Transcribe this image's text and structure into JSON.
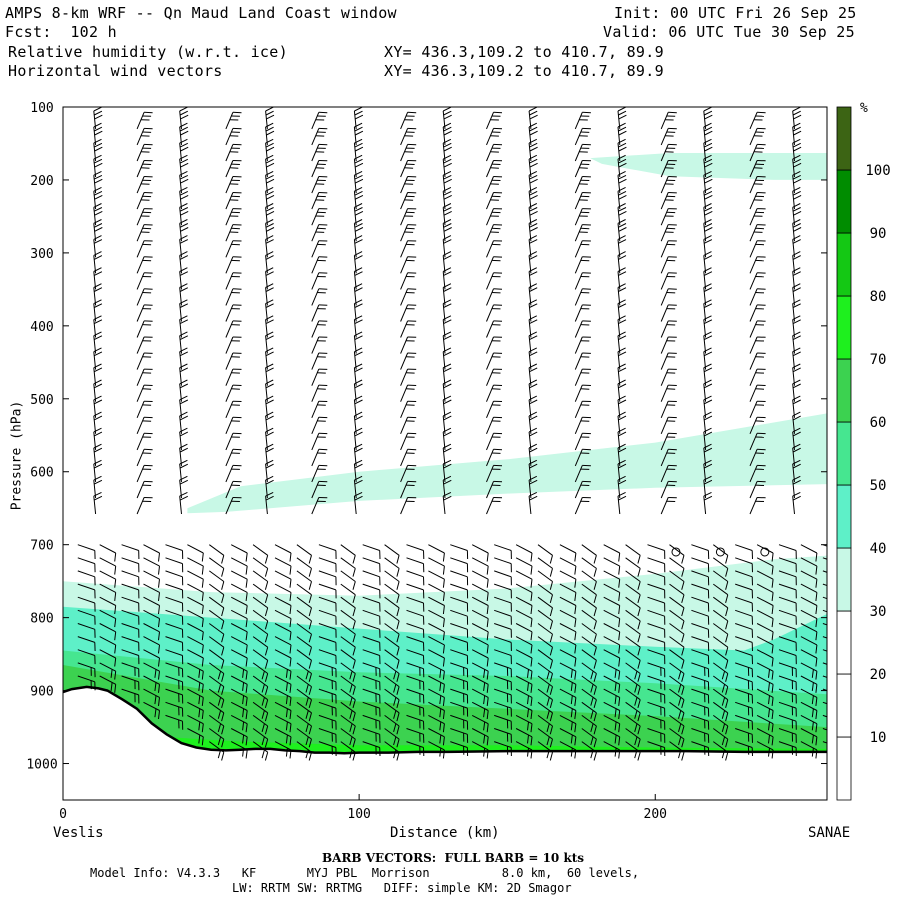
{
  "header": {
    "title": "AMPS 8-km WRF -- Qn Maud Land Coast window",
    "forecast": "Fcst:  102 h",
    "field1": "Relative humidity (w.r.t. ice)",
    "field2": "Horizontal wind vectors",
    "init": "Init: 00 UTC Fri 26 Sep 25",
    "valid": "Valid: 06 UTC Tue 30 Sep 25",
    "xy1": "XY= 436.3,109.2 to 410.7, 89.9",
    "xy2": "XY= 436.3,109.2 to 410.7, 89.9"
  },
  "footer": {
    "barb_note": "BARB VECTORS:  FULL BARB = 10 kts",
    "model_line1": "Model Info: V4.3.3   KF       MYJ PBL  Morrison          8.0 km,  60 levels,",
    "model_line2": "LW: RRTM SW: RRTMG   DIFF: simple KM: 2D Smagor"
  },
  "colors": {
    "rh_10_20": "#ffffff",
    "rh_20_30": "#ffffff",
    "rh_30_40": "#c8f8e6",
    "rh_40_50": "#5ef0c8",
    "rh_50_60": "#46e690",
    "rh_60_70": "#3cd250",
    "rh_70_80": "#1ef01e",
    "rh_80_90": "#14c814",
    "rh_90_100": "#008c00",
    "rh_100_plus": "#3c6414",
    "terrain": "#000000",
    "barb": "#000000"
  },
  "chart_data": {
    "type": "heatmap",
    "title": "Relative humidity (w.r.t. ice) and horizontal wind vectors cross-section",
    "xlabel": "Distance (km)",
    "ylabel": "Pressure (hPa)",
    "xlim": [
      0,
      258
    ],
    "ylim": [
      1050,
      100
    ],
    "x_ticks": [
      0,
      100,
      200
    ],
    "y_ticks": [
      100,
      200,
      300,
      400,
      500,
      600,
      700,
      800,
      900,
      1000
    ],
    "x_endpoints": {
      "left": "Veslis",
      "right": "SANAE"
    },
    "colorbar": {
      "unit": "%",
      "tick_labels": [
        10,
        20,
        30,
        40,
        50,
        60,
        70,
        80,
        90,
        100
      ],
      "bands": [
        {
          "from": 0,
          "to": 10,
          "color_key": "rh_10_20"
        },
        {
          "from": 10,
          "to": 20,
          "color_key": "rh_10_20"
        },
        {
          "from": 20,
          "to": 30,
          "color_key": "rh_20_30"
        },
        {
          "from": 30,
          "to": 40,
          "color_key": "rh_30_40"
        },
        {
          "from": 40,
          "to": 50,
          "color_key": "rh_40_50"
        },
        {
          "from": 50,
          "to": 60,
          "color_key": "rh_50_60"
        },
        {
          "from": 60,
          "to": 70,
          "color_key": "rh_60_70"
        },
        {
          "from": 70,
          "to": 80,
          "color_key": "rh_70_80"
        },
        {
          "from": 80,
          "to": 90,
          "color_key": "rh_80_90"
        },
        {
          "from": 90,
          "to": 100,
          "color_key": "rh_90_100"
        },
        {
          "from": 100,
          "to": 110,
          "color_key": "rh_100_plus"
        }
      ]
    },
    "terrain_surface": {
      "x_km": [
        0,
        3,
        8,
        12,
        15,
        20,
        25,
        30,
        35,
        40,
        45,
        50,
        55,
        60,
        65,
        70,
        75,
        80,
        85,
        90,
        95,
        100,
        110,
        120,
        130,
        150,
        170,
        190,
        210,
        230,
        250,
        258
      ],
      "pressure_hpa": [
        902,
        898,
        895,
        897,
        900,
        912,
        925,
        945,
        960,
        972,
        978,
        981,
        982,
        981,
        980,
        980,
        982,
        983,
        985,
        985,
        986,
        985,
        985,
        984,
        984,
        983,
        983,
        983,
        983,
        984,
        984,
        984
      ]
    },
    "rh_regions": [
      {
        "category": "30-40",
        "color_key": "rh_30_40",
        "description": "upper level band",
        "x_km": [
          178,
          205,
          258,
          258,
          240,
          205,
          182
        ],
        "pressure_hpa": [
          170,
          163,
          163,
          200,
          200,
          195,
          178
        ]
      },
      {
        "category": "30-40",
        "color_key": "rh_30_40",
        "description": "mid-level layer",
        "x_km": [
          42,
          60,
          100,
          150,
          200,
          258,
          258,
          200,
          150,
          100,
          55,
          42
        ],
        "pressure_hpa": [
          650,
          620,
          600,
          583,
          560,
          520,
          617,
          622,
          630,
          640,
          655,
          657
        ]
      },
      {
        "category": "30-40",
        "color_key": "rh_30_40",
        "description": "low-level moist layer",
        "x_km": [
          0,
          50,
          100,
          150,
          200,
          240,
          258,
          258,
          0
        ],
        "pressure_hpa": [
          750,
          765,
          770,
          760,
          740,
          720,
          715,
          985,
          985
        ]
      },
      {
        "category": "40-50",
        "color_key": "rh_40_50",
        "description": "boundary layer",
        "x_km": [
          0,
          50,
          100,
          150,
          200,
          230,
          240,
          258,
          258,
          0
        ],
        "pressure_hpa": [
          785,
          800,
          815,
          830,
          840,
          845,
          830,
          795,
          985,
          985
        ]
      },
      {
        "category": "50-60",
        "color_key": "rh_50_60",
        "description": "lower boundary layer",
        "x_km": [
          0,
          50,
          100,
          150,
          200,
          258,
          258,
          0
        ],
        "pressure_hpa": [
          845,
          865,
          875,
          880,
          890,
          905,
          985,
          985
        ]
      },
      {
        "category": "60-70",
        "color_key": "rh_60_70",
        "description": "near surface",
        "x_km": [
          0,
          50,
          100,
          150,
          200,
          258,
          258,
          0
        ],
        "pressure_hpa": [
          865,
          900,
          915,
          925,
          935,
          950,
          985,
          985
        ]
      },
      {
        "category": "70-80",
        "color_key": "rh_70_80",
        "description": "surface skin",
        "x_km": [
          20,
          60,
          100,
          150,
          200,
          258,
          258,
          20
        ],
        "pressure_hpa": [
          960,
          970,
          975,
          975,
          978,
          980,
          985,
          985
        ]
      }
    ],
    "calm_markers": {
      "x_km": [
        207,
        222,
        237
      ],
      "pressure_hpa": [
        710,
        710,
        710
      ]
    },
    "wind_barb_columns_x_km": [
      10,
      24,
      39,
      54,
      68,
      83,
      98,
      113,
      128,
      142,
      157,
      172,
      187,
      201,
      216,
      231,
      246
    ]
  }
}
